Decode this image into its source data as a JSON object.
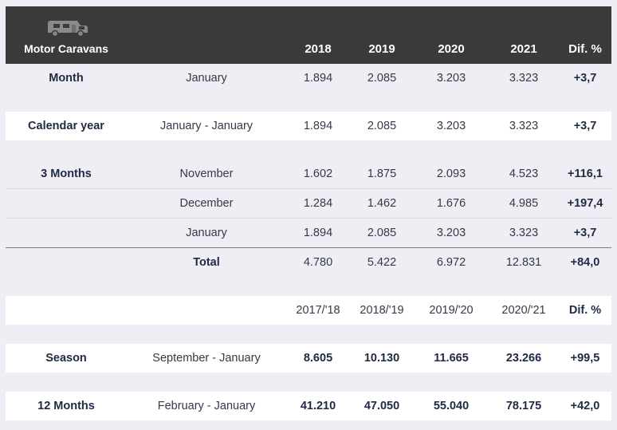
{
  "header": {
    "title": "Motor Caravans",
    "icon": "motor-caravan-icon",
    "cols": [
      "2018",
      "2019",
      "2020",
      "2021",
      "Dif. %"
    ]
  },
  "month": {
    "label": "Month",
    "period": "January",
    "values": [
      "1.894",
      "2.085",
      "3.203",
      "3.323"
    ],
    "dif": "+3,7"
  },
  "calendar": {
    "label": "Calendar year",
    "period": "January - January",
    "values": [
      "1.894",
      "2.085",
      "3.203",
      "3.323"
    ],
    "dif": "+3,7"
  },
  "three_months": {
    "label": "3 Months",
    "rows": [
      {
        "period": "November",
        "values": [
          "1.602",
          "1.875",
          "2.093",
          "4.523"
        ],
        "dif": "+116,1"
      },
      {
        "period": "December",
        "values": [
          "1.284",
          "1.462",
          "1.676",
          "4.985"
        ],
        "dif": "+197,4"
      },
      {
        "period": "January",
        "values": [
          "1.894",
          "2.085",
          "3.203",
          "3.323"
        ],
        "dif": "+3,7"
      }
    ],
    "total": {
      "label": "Total",
      "values": [
        "4.780",
        "5.422",
        "6.972",
        "12.831"
      ],
      "dif": "+84,0"
    }
  },
  "season_header": {
    "cols": [
      "2017/'18",
      "2018/'19",
      "2019/'20",
      "2020/'21",
      "Dif. %"
    ]
  },
  "season": {
    "label": "Season",
    "period": "September - January",
    "values": [
      "8.605",
      "10.130",
      "11.665",
      "23.266"
    ],
    "dif": "+99,5"
  },
  "twelve": {
    "label": "12 Months",
    "period": "February - January",
    "values": [
      "41.210",
      "47.050",
      "55.040",
      "78.175"
    ],
    "dif": "+42,0"
  }
}
